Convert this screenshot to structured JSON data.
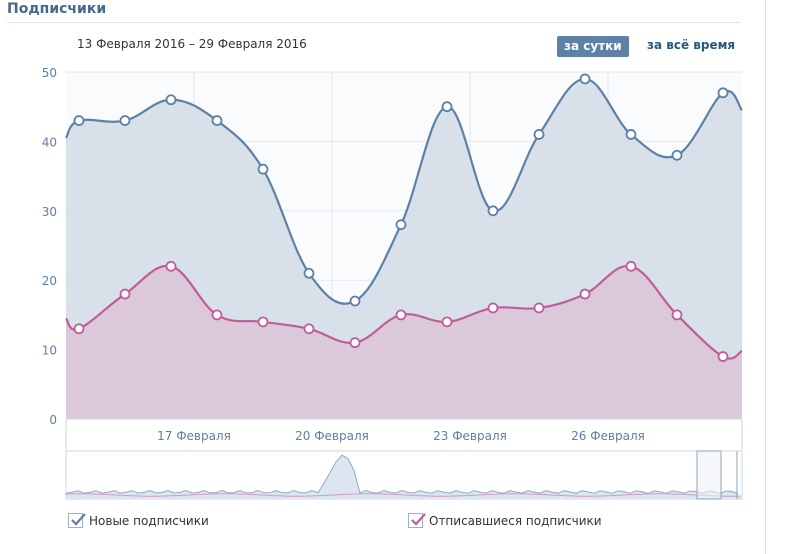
{
  "header": {
    "title": "Подписчики",
    "date_range": "13 Февраля 2016 – 29 Февраля 2016",
    "buttons": {
      "per_day": "за сутки",
      "all_time": "за всё время"
    }
  },
  "chart_data": {
    "type": "area",
    "x_tick_labels": [
      "17 Февраля",
      "20 Февраля",
      "23 Февраля",
      "26 Февраля"
    ],
    "x_tick_index": [
      2,
      5,
      8,
      11
    ],
    "y_ticks": [
      0,
      10,
      20,
      30,
      40,
      50
    ],
    "ylim": [
      0,
      50
    ],
    "grid": true,
    "point_count": 15,
    "series": [
      {
        "name": "Новые подписчики",
        "color": "#5d81a6",
        "fill": "#d8e1ea",
        "values": [
          43,
          43,
          46,
          43,
          36,
          21,
          17,
          28,
          45,
          30,
          41,
          49,
          41,
          38,
          47
        ],
        "edge_start": 40.5,
        "edge_end": 44.5
      },
      {
        "name": "Отписавшиеся подписчики",
        "color": "#c05d98",
        "fill": "#dcc5d7",
        "values": [
          13,
          18,
          22,
          15,
          14,
          13,
          11,
          15,
          14,
          16,
          16,
          18,
          22,
          15,
          9
        ],
        "edge_start": 14.5,
        "edge_end": 9.8
      }
    ]
  },
  "legend": [
    {
      "label": "Новые подписчики",
      "checked": true,
      "color": "#5d81a6"
    },
    {
      "label": "Отписавшиеся подписчики",
      "checked": true,
      "color": "#c05d98"
    }
  ]
}
